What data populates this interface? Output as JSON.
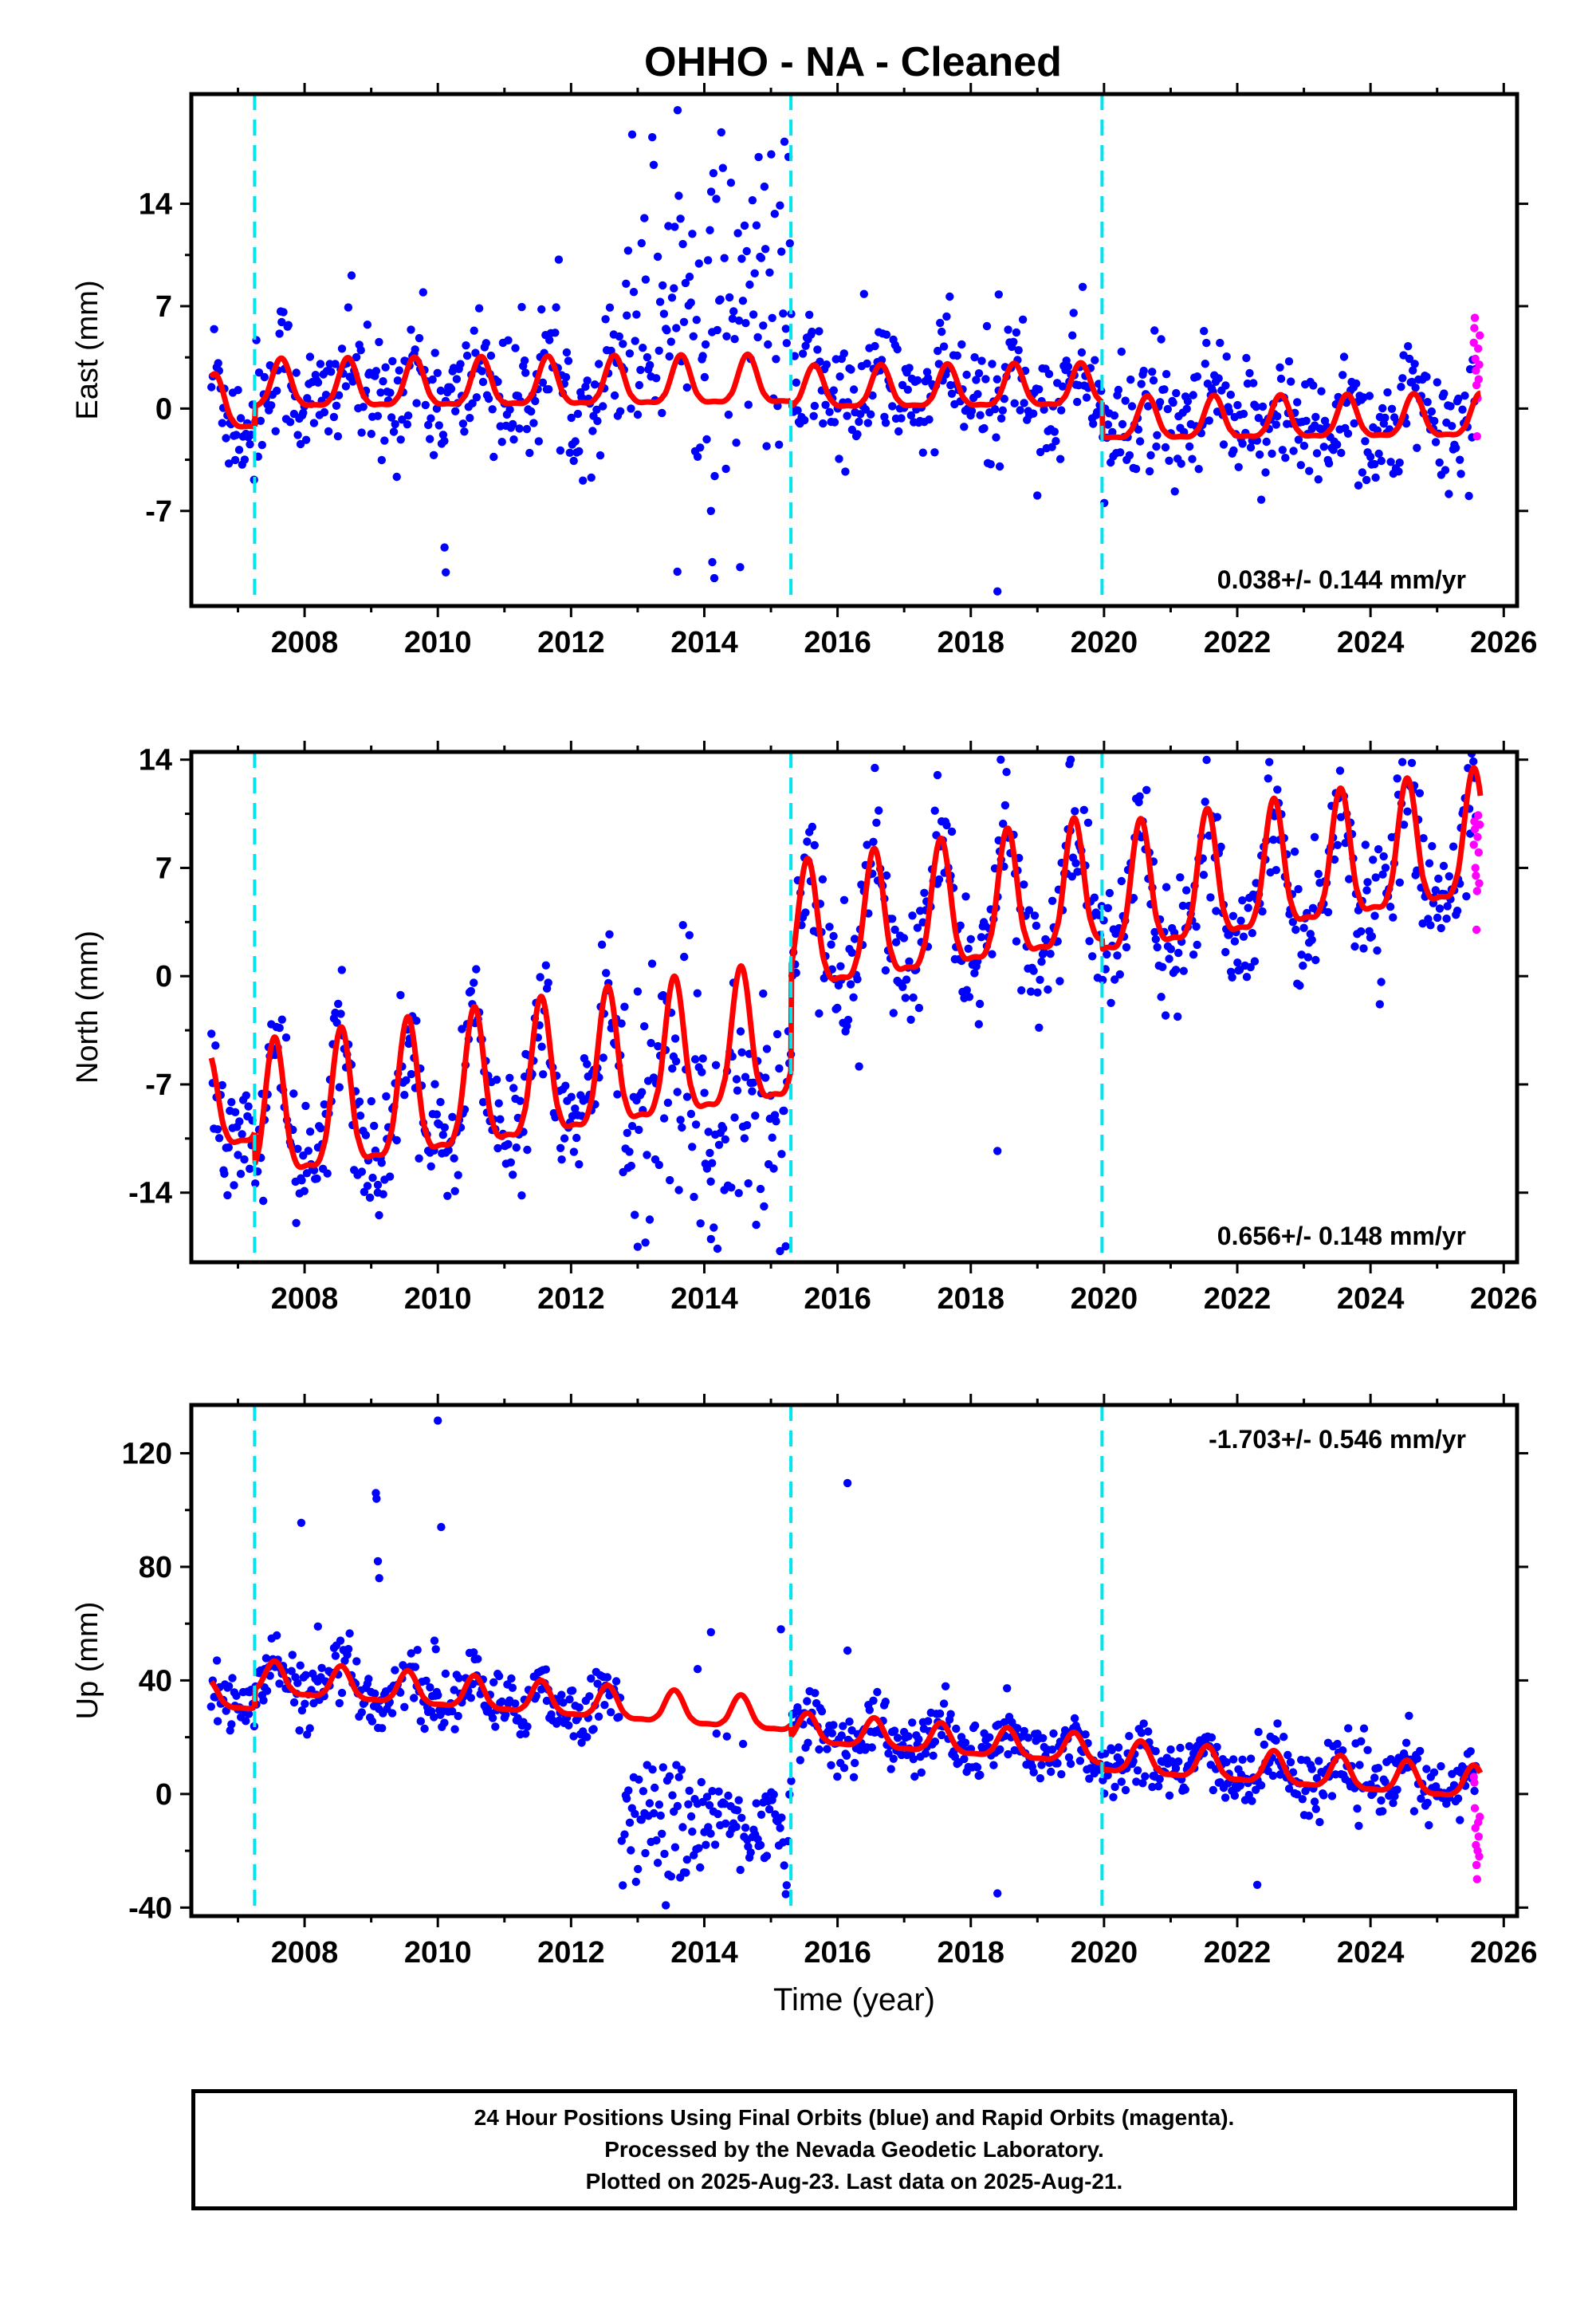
{
  "title": "OHHO  - NA - Cleaned",
  "footer": {
    "lines": [
      "24 Hour Positions Using Final Orbits (blue) and Rapid Orbits (magenta).",
      "Processed by the Nevada Geodetic Laboratory.",
      "Plotted on 2025-Aug-23. Last data on 2025-Aug-21."
    ]
  },
  "colors": {
    "final_orbits": "#0000ff",
    "rapid_orbits": "#ff00ff",
    "model_fit": "#ff0000",
    "equipment_changes": "#00e5ee",
    "frame": "#000000"
  },
  "chart_data": [
    {
      "type": "scatter",
      "panel": "east",
      "ylabel": "East (mm)",
      "xlabel": "",
      "xlim": [
        2006.3,
        2026.2
      ],
      "ylim": [
        -13.5,
        21.5
      ],
      "xticks": [
        2008,
        2010,
        2012,
        2014,
        2016,
        2018,
        2020,
        2022,
        2024,
        2026
      ],
      "yticks": [
        -7,
        0,
        7,
        14
      ],
      "rate_label": "0.038+/- 0.144 mm/yr",
      "rate_position": "bottom-right",
      "equipment_changes": [
        2007.25,
        2015.3,
        2019.97
      ],
      "model": {
        "name": "model fit",
        "offsets": [
          {
            "start": 2006.6,
            "end": 2007.25,
            "offset": 0.3,
            "amplitude": 1.8
          },
          {
            "start": 2007.25,
            "end": 2015.3,
            "offset": 1.6,
            "amplitude": 1.6
          },
          {
            "start": 2015.3,
            "end": 2019.97,
            "offset": 1.1,
            "amplitude": 1.4
          },
          {
            "start": 2019.97,
            "end": 2025.65,
            "offset": -1.2,
            "amplitude": 1.4
          }
        ],
        "trend_mm_per_yr": 0.038,
        "peak_phase_year": 0.65
      },
      "blue_points": {
        "name": "Final Orbits",
        "start": 2006.6,
        "end": 2025.58,
        "step": 0.02,
        "scatter_mm": 2.2,
        "noisy_interval": {
          "start": 2012.75,
          "end": 2015.3,
          "center_mm": 7.5,
          "scatter_mm": 5.5
        },
        "outliers": [
          [
            2010.1,
            -9.5
          ],
          [
            2010.12,
            -11.2
          ],
          [
            2014.1,
            -7.0
          ],
          [
            2014.12,
            -10.5
          ],
          [
            2014.15,
            -11.6
          ],
          [
            2018.4,
            -12.5
          ],
          [
            2013.6,
            20.4
          ],
          [
            2018.42,
            7.8
          ],
          [
            2021.5,
            5.3
          ]
        ]
      },
      "magenta_points": {
        "name": "Rapid Orbits",
        "start": 2025.55,
        "end": 2025.64,
        "values": [
          4.5,
          5.5,
          6.2,
          3.4,
          2.6,
          1.6,
          -1.9,
          0.7,
          4.1,
          2.0,
          3.0,
          5.0
        ]
      }
    },
    {
      "type": "scatter",
      "panel": "north",
      "ylabel": "North (mm)",
      "xlabel": "",
      "xlim": [
        2006.3,
        2026.2
      ],
      "ylim": [
        -18.5,
        14.5
      ],
      "xticks": [
        2008,
        2010,
        2012,
        2014,
        2016,
        2018,
        2020,
        2022,
        2024,
        2026
      ],
      "yticks": [
        -14,
        -7,
        0,
        7,
        14
      ],
      "rate_label": "0.656+/- 0.148 mm/yr",
      "rate_position": "bottom-right",
      "equipment_changes": [
        2007.25,
        2015.3,
        2019.97
      ],
      "model": {
        "name": "model fit",
        "offsets": [
          {
            "start": 2006.6,
            "end": 2007.25,
            "offset": -2.8,
            "amplitude": 3.0
          },
          {
            "start": 2007.25,
            "end": 2015.3,
            "offset": -4.2,
            "amplitude": 4.3
          },
          {
            "start": 2015.3,
            "end": 2019.97,
            "offset": 2.5,
            "amplitude": 4.0
          },
          {
            "start": 2019.97,
            "end": 2025.65,
            "offset": 1.8,
            "amplitude": 4.0
          }
        ],
        "trend_mm_per_yr": 0.656,
        "peak_phase_year": 0.55
      },
      "blue_points": {
        "name": "Final Orbits",
        "start": 2006.6,
        "end": 2025.58,
        "step": 0.02,
        "scatter_mm": 2.0,
        "noisy_interval": {
          "start": 2012.75,
          "end": 2015.3,
          "center_mm": -8.5,
          "scatter_mm": 4.5
        },
        "outliers": [
          [
            2009.1,
            -13.5
          ],
          [
            2013.0,
            -17.5
          ],
          [
            2014.1,
            -17.0
          ],
          [
            2018.4,
            -11.3
          ],
          [
            2018.45,
            14.0
          ],
          [
            2019.5,
            14.0
          ],
          [
            2017.5,
            13.0
          ]
        ]
      },
      "magenta_points": {
        "name": "Rapid Orbits",
        "start": 2025.55,
        "end": 2025.64,
        "values": [
          8.5,
          10.0,
          9.5,
          7.0,
          6.5,
          3.0,
          5.5,
          9.0,
          10.4,
          8.0,
          6.0,
          9.8
        ]
      }
    },
    {
      "type": "scatter",
      "panel": "up",
      "ylabel": "Up (mm)",
      "xlabel": "Time (year)",
      "xlim": [
        2006.3,
        2026.2
      ],
      "ylim": [
        -43,
        137
      ],
      "xticks": [
        2008,
        2010,
        2012,
        2014,
        2016,
        2018,
        2020,
        2022,
        2024,
        2026
      ],
      "yticks": [
        -40,
        0,
        40,
        80,
        120
      ],
      "rate_label": "-1.703+/- 0.546 mm/yr",
      "rate_position": "top-right",
      "equipment_changes": [
        2007.25,
        2015.3,
        2019.97
      ],
      "model": {
        "name": "model fit",
        "offsets": [
          {
            "start": 2006.6,
            "end": 2007.25,
            "offset": 18.0,
            "amplitude": 4.5
          },
          {
            "start": 2007.25,
            "end": 2015.3,
            "offset": 25.0,
            "amplitude": 5.5
          },
          {
            "start": 2015.3,
            "end": 2019.97,
            "offset": 21.0,
            "amplitude": 5.0
          },
          {
            "start": 2019.97,
            "end": 2025.65,
            "offset": 19.0,
            "amplitude": 5.5
          }
        ],
        "trend_mm_per_yr": -1.703,
        "peak_phase_year": 0.55
      },
      "blue_points": {
        "name": "Final Orbits",
        "start": 2006.6,
        "end": 2025.58,
        "step": 0.02,
        "scatter_mm": 5.5,
        "noisy_interval": {
          "start": 2012.75,
          "end": 2015.3,
          "center_mm": -10.0,
          "scatter_mm": 11.0
        },
        "outliers": [
          [
            2007.95,
            95.5
          ],
          [
            2008.2,
            59.0
          ],
          [
            2009.07,
            106.0
          ],
          [
            2009.08,
            104.0
          ],
          [
            2009.1,
            82.0
          ],
          [
            2009.12,
            76.0
          ],
          [
            2010.0,
            131.5
          ],
          [
            2010.05,
            94.0
          ],
          [
            2009.95,
            54.0
          ],
          [
            2009.97,
            51.0
          ],
          [
            2014.1,
            57.0
          ],
          [
            2013.9,
            44.0
          ],
          [
            2016.15,
            109.5
          ],
          [
            2016.15,
            50.5
          ],
          [
            2015.15,
            58.0
          ],
          [
            2018.4,
            -35.0
          ],
          [
            2022.3,
            -32.0
          ],
          [
            2007.4,
            44.0
          ]
        ]
      },
      "magenta_points": {
        "name": "Rapid Orbits",
        "start": 2025.55,
        "end": 2025.64,
        "values": [
          6.0,
          4.0,
          -5.0,
          -12.0,
          -18.0,
          -25.0,
          -30.0,
          -20.0,
          -10.0,
          -15.0,
          -22.0,
          -8.0
        ]
      }
    }
  ]
}
